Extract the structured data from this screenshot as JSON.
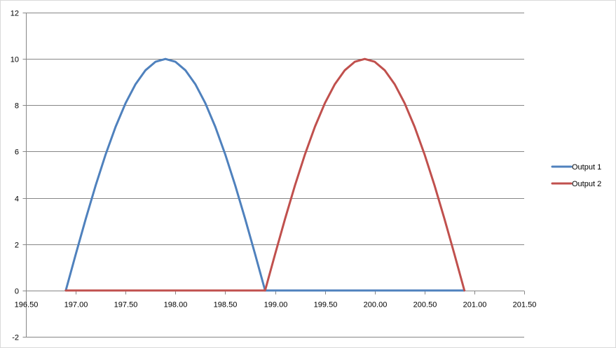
{
  "chart_data": {
    "type": "line",
    "title": "",
    "xlabel": "",
    "ylabel": "",
    "xlim": [
      196.5,
      201.5
    ],
    "ylim": [
      -2,
      12
    ],
    "x_ticks": [
      196.5,
      197.0,
      197.5,
      198.0,
      198.5,
      199.0,
      199.5,
      200.0,
      200.5,
      201.0,
      201.5
    ],
    "x_tick_labels": [
      "196.50",
      "197.00",
      "197.50",
      "198.00",
      "198.50",
      "199.00",
      "199.50",
      "200.00",
      "200.50",
      "201.00",
      "201.50"
    ],
    "y_ticks": [
      -2,
      0,
      2,
      4,
      6,
      8,
      10,
      12
    ],
    "y_tick_labels": [
      "-2",
      "0",
      "2",
      "4",
      "6",
      "8",
      "10",
      "12"
    ],
    "grid": true,
    "legend_position": "right",
    "series": [
      {
        "name": "Output 1",
        "color": "#4f81bd",
        "points": [
          [
            196.9,
            0
          ],
          [
            197.0,
            1.564
          ],
          [
            197.1,
            3.09
          ],
          [
            197.2,
            4.54
          ],
          [
            197.3,
            5.878
          ],
          [
            197.4,
            7.071
          ],
          [
            197.5,
            8.09
          ],
          [
            197.6,
            8.91
          ],
          [
            197.7,
            9.511
          ],
          [
            197.8,
            9.877
          ],
          [
            197.9,
            10.0
          ],
          [
            198.0,
            9.877
          ],
          [
            198.1,
            9.511
          ],
          [
            198.2,
            8.91
          ],
          [
            198.3,
            8.09
          ],
          [
            198.4,
            7.071
          ],
          [
            198.5,
            5.878
          ],
          [
            198.6,
            4.54
          ],
          [
            198.7,
            3.09
          ],
          [
            198.8,
            1.564
          ],
          [
            198.9,
            0
          ],
          [
            200.9,
            0
          ]
        ]
      },
      {
        "name": "Output 2",
        "color": "#c0504d",
        "points": [
          [
            196.9,
            0
          ],
          [
            198.9,
            0
          ],
          [
            199.0,
            1.564
          ],
          [
            199.1,
            3.09
          ],
          [
            199.2,
            4.54
          ],
          [
            199.3,
            5.878
          ],
          [
            199.4,
            7.071
          ],
          [
            199.5,
            8.09
          ],
          [
            199.6,
            8.91
          ],
          [
            199.7,
            9.511
          ],
          [
            199.8,
            9.877
          ],
          [
            199.9,
            10.0
          ],
          [
            200.0,
            9.877
          ],
          [
            200.1,
            9.511
          ],
          [
            200.2,
            8.91
          ],
          [
            200.3,
            8.09
          ],
          [
            200.4,
            7.071
          ],
          [
            200.5,
            5.878
          ],
          [
            200.6,
            4.54
          ],
          [
            200.7,
            3.09
          ],
          [
            200.8,
            1.564
          ],
          [
            200.9,
            0
          ]
        ]
      }
    ]
  }
}
